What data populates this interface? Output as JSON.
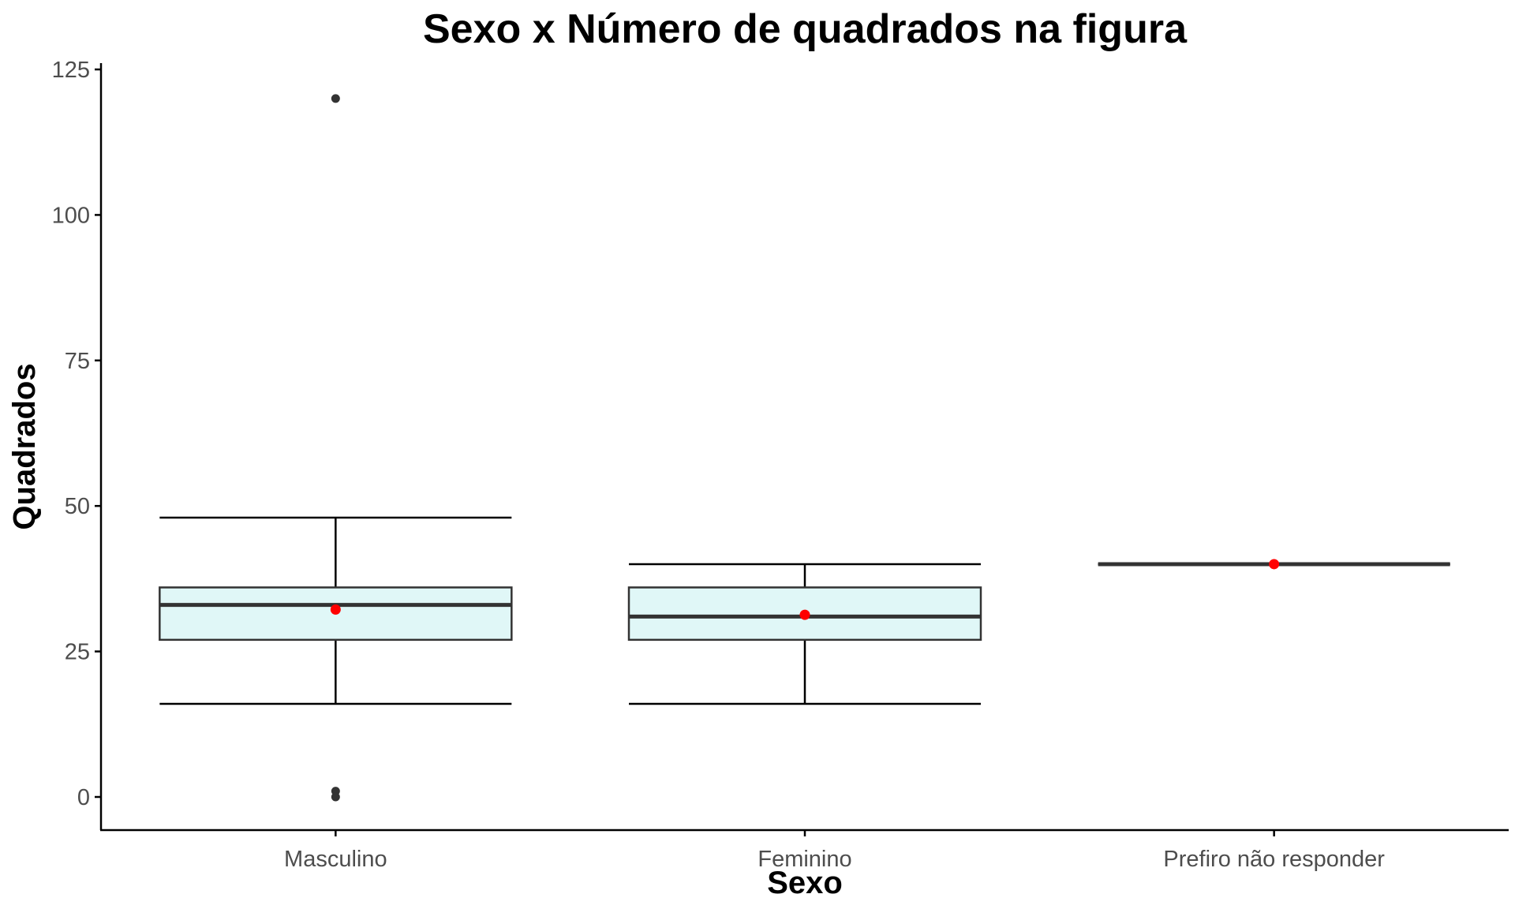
{
  "chart_data": {
    "type": "boxplot",
    "title": "Sexo x Número de quadrados na figura",
    "xlabel": "Sexo",
    "ylabel": "Quadrados",
    "categories": [
      "Masculino",
      "Feminino",
      "Prefiro não responder"
    ],
    "ylim": [
      -6,
      126
    ],
    "yticks": [
      0,
      25,
      50,
      75,
      100,
      125
    ],
    "ytick_labels": [
      "0",
      "25",
      "50",
      "75",
      "100",
      "125"
    ],
    "grid": false,
    "legend": "none",
    "boxes": [
      {
        "category": "Masculino",
        "whisker_low": 16,
        "q1": 27,
        "median": 33,
        "q3": 36,
        "whisker_high": 48,
        "mean": 32.2,
        "outliers": [
          120,
          1,
          0
        ]
      },
      {
        "category": "Feminino",
        "whisker_low": 16,
        "q1": 27,
        "median": 31,
        "q3": 36,
        "whisker_high": 40,
        "mean": 31.3,
        "outliers": []
      },
      {
        "category": "Prefiro não responder",
        "whisker_low": 40,
        "q1": 40,
        "median": 40,
        "q3": 40,
        "whisker_high": 40,
        "mean": 40,
        "outliers": []
      }
    ],
    "colors": {
      "box_fill": "#e0f7f7",
      "box_stroke": "#333333",
      "whisker": "#000000",
      "outlier": "#333333",
      "mean_point": "#ff0000",
      "axis": "#000000",
      "tick_label": "#4d4d4d"
    }
  }
}
